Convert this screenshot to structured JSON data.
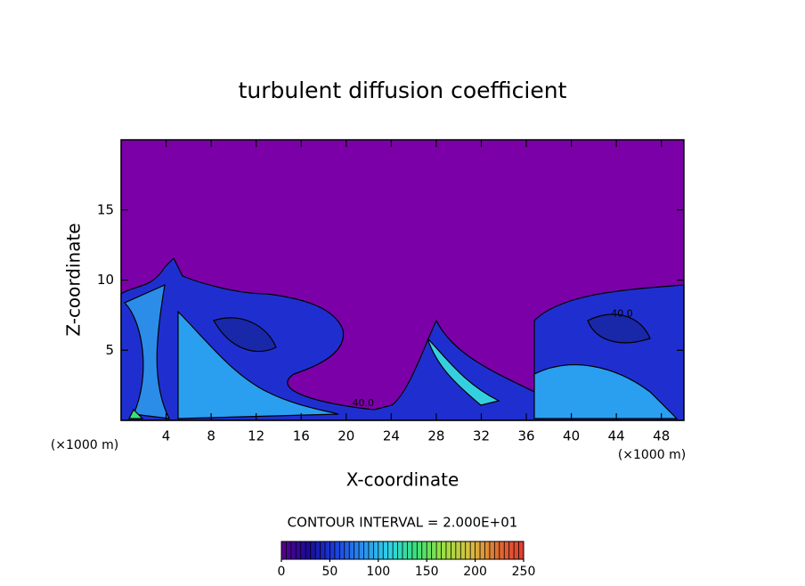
{
  "chart_data": {
    "type": "contour",
    "title": "turbulent diffusion coefficient",
    "x_label": "X-coordinate",
    "y_label": "Z-coordinate",
    "x_unit_label": "(×1000 m)",
    "x_unit_label_right": "(×1000 m)",
    "xlim": [
      0,
      50
    ],
    "xticks": [
      4,
      8,
      12,
      16,
      20,
      24,
      28,
      32,
      36,
      40,
      44,
      48
    ],
    "ylim": [
      0,
      20
    ],
    "yticks": [
      5,
      10,
      15
    ],
    "contour_labels": [
      {
        "value": 40,
        "label": "40.0",
        "x": 21.5,
        "y": 1.2
      },
      {
        "value": 40,
        "label": "40.0",
        "x": 44.5,
        "y": 7.6
      }
    ],
    "contour_interval_text": "CONTOUR INTERVAL = 2.000E+01",
    "background_color": "#7b00a8",
    "colorbar": {
      "clim": [
        0,
        250
      ],
      "ticks": [
        0,
        50,
        100,
        150,
        200,
        250
      ],
      "colors": [
        "#5a0090",
        "#1a0a9a",
        "#1b3ee0",
        "#2a8ff0",
        "#2fd3e6",
        "#3ce07a",
        "#9ae040",
        "#d8c040",
        "#e07030",
        "#e03a30"
      ]
    }
  }
}
